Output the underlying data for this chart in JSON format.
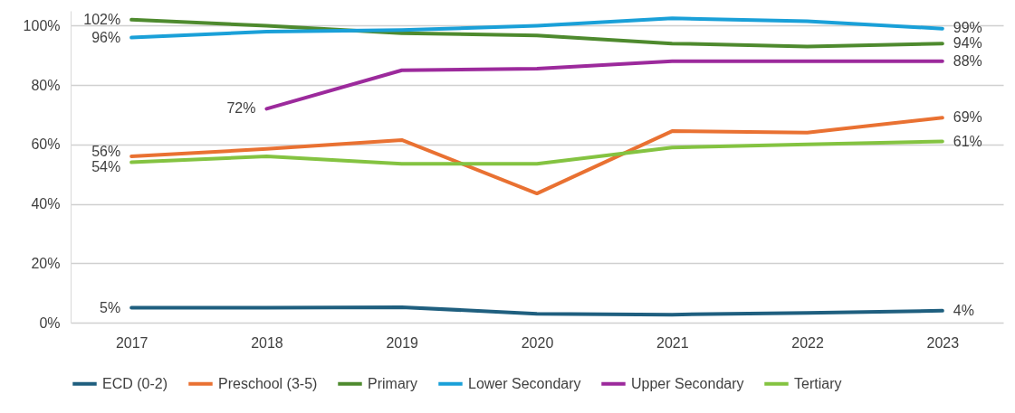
{
  "chart_data": {
    "type": "line",
    "categories": [
      "2017",
      "2018",
      "2019",
      "2020",
      "2021",
      "2022",
      "2023"
    ],
    "ylim": [
      0,
      105
    ],
    "yticks": [
      {
        "value": 0,
        "label": "0%"
      },
      {
        "value": 20,
        "label": "20%"
      },
      {
        "value": 40,
        "label": "40%"
      },
      {
        "value": 60,
        "label": "60%"
      },
      {
        "value": 80,
        "label": "80%"
      },
      {
        "value": 100,
        "label": "100%"
      }
    ],
    "grid": "y",
    "legend": "bottom",
    "marker": "none",
    "line_style": "solid",
    "series": [
      {
        "name": "ECD (0-2)",
        "color": "#1f5f7f",
        "values": [
          5,
          5,
          5.2,
          3,
          2.7,
          3.3,
          4
        ],
        "value_labels": [
          "5%",
          null,
          null,
          null,
          null,
          null,
          "4%"
        ]
      },
      {
        "name": "Preschool (3-5)",
        "color": "#e97132",
        "values": [
          56,
          58.5,
          61.5,
          43.5,
          64.5,
          64,
          69
        ],
        "value_labels": [
          "56%",
          null,
          null,
          null,
          null,
          null,
          "69%"
        ]
      },
      {
        "name": "Primary",
        "color": "#4e8a2e",
        "values": [
          102,
          100,
          97.5,
          96.7,
          94,
          93,
          94
        ],
        "value_labels": [
          "102%",
          null,
          null,
          null,
          null,
          null,
          "94%"
        ]
      },
      {
        "name": "Lower Secondary",
        "color": "#1aa0d8",
        "values": [
          96,
          98,
          98.5,
          100,
          102.5,
          101.5,
          99
        ],
        "value_labels": [
          "96%",
          null,
          null,
          null,
          null,
          null,
          "99%"
        ]
      },
      {
        "name": "Upper Secondary",
        "color": "#9c2a9c",
        "values": [
          null,
          72,
          85,
          85.5,
          88,
          88,
          88
        ],
        "value_labels": [
          null,
          "72%",
          null,
          null,
          null,
          null,
          "88%"
        ]
      },
      {
        "name": "Tertiary",
        "color": "#84c341",
        "values": [
          54,
          56,
          53.5,
          53.5,
          59,
          60,
          61
        ],
        "value_labels": [
          "54%",
          null,
          null,
          null,
          null,
          null,
          "61%"
        ]
      }
    ]
  }
}
